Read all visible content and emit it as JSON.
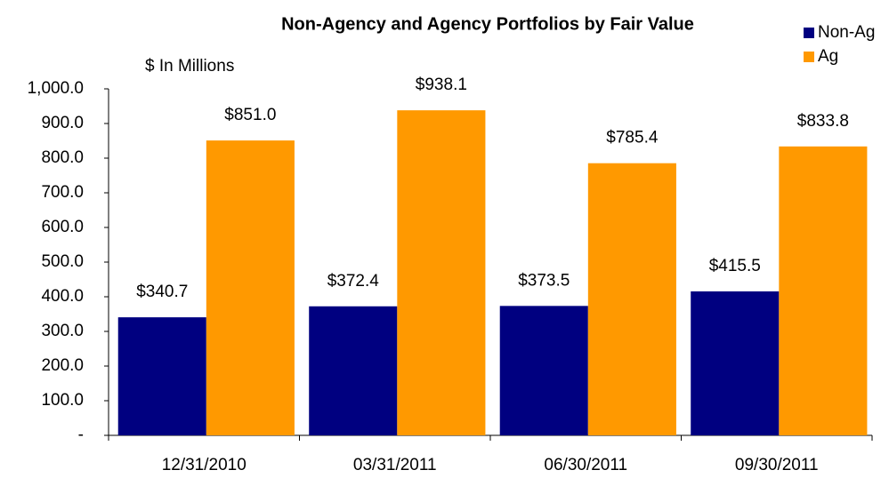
{
  "chart_data": {
    "type": "bar",
    "title": "Non-Agency and Agency Portfolios by Fair Value",
    "subtitle": "$ In Millions",
    "categories": [
      "12/31/2010",
      "03/31/2011",
      "06/30/2011",
      "09/30/2011"
    ],
    "series": [
      {
        "name": "Non-Ag",
        "color": "#000080",
        "values": [
          340.7,
          372.4,
          373.5,
          415.5
        ],
        "value_labels": [
          "$340.7",
          "$372.4",
          "$373.5",
          "$415.5"
        ]
      },
      {
        "name": "Ag",
        "color": "#ff9900",
        "values": [
          851.0,
          938.1,
          785.4,
          833.8
        ],
        "value_labels": [
          "$851.0",
          "$938.1",
          "$785.4",
          "$833.8"
        ]
      }
    ],
    "ylim": [
      0,
      1000
    ],
    "yticks": [
      {
        "value": 0,
        "label": "-"
      },
      {
        "value": 100,
        "label": "100.0"
      },
      {
        "value": 200,
        "label": "200.0"
      },
      {
        "value": 300,
        "label": "300.0"
      },
      {
        "value": 400,
        "label": "400.0"
      },
      {
        "value": 500,
        "label": "500.0"
      },
      {
        "value": 600,
        "label": "600.0"
      },
      {
        "value": 700,
        "label": "700.0"
      },
      {
        "value": 800,
        "label": "800.0"
      },
      {
        "value": 900,
        "label": "900.0"
      },
      {
        "value": 1000,
        "label": "1,000.0"
      }
    ],
    "grid": false,
    "legend": "top-right"
  }
}
